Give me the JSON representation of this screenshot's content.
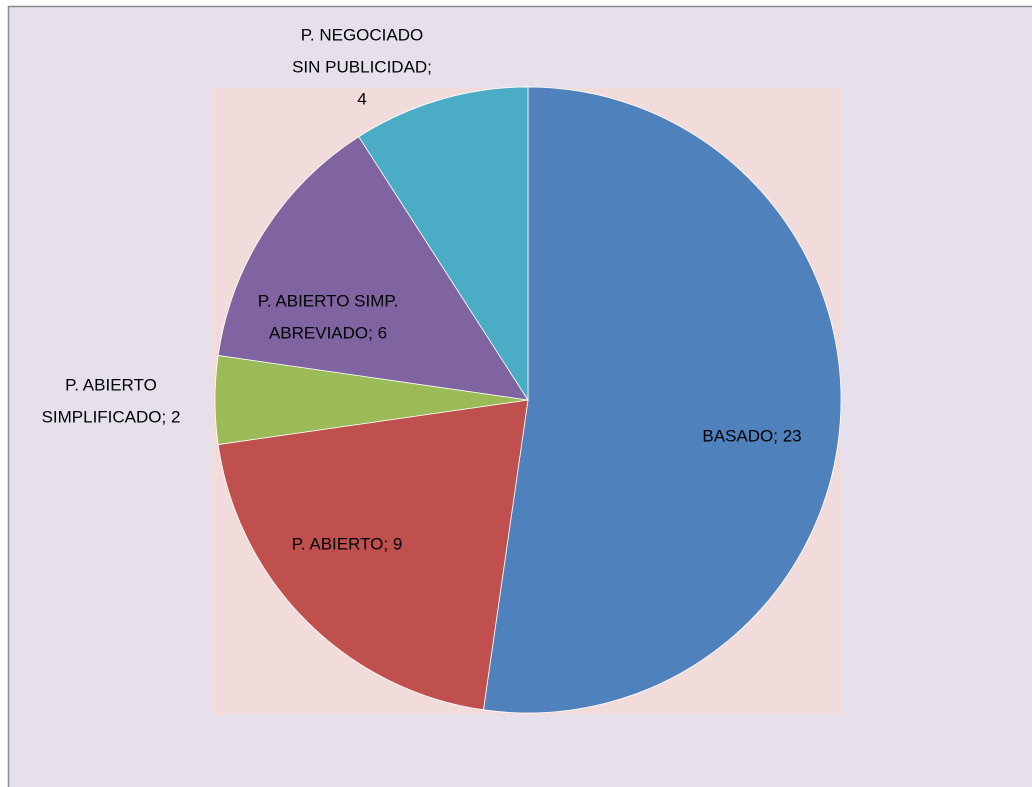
{
  "chart_data": {
    "type": "pie",
    "values": [
      23,
      9,
      2,
      6,
      4
    ],
    "value_labels": [
      [
        "BASADO; 23"
      ],
      [
        "P. ABIERTO; 9"
      ],
      [
        "P. ABIERTO",
        "SIMPLIFICADO; 2"
      ],
      [
        "P. ABIERTO SIMP.",
        "ABREVIADO; 6"
      ],
      [
        "P. NEGOCIADO",
        "SIN PUBLICIDAD;",
        "4"
      ]
    ],
    "colors": [
      "#4f81bd",
      "#c0504d",
      "#9bbb59",
      "#8064a2",
      "#4bacc6"
    ],
    "start_angle": 90,
    "direction": "clockwise"
  }
}
